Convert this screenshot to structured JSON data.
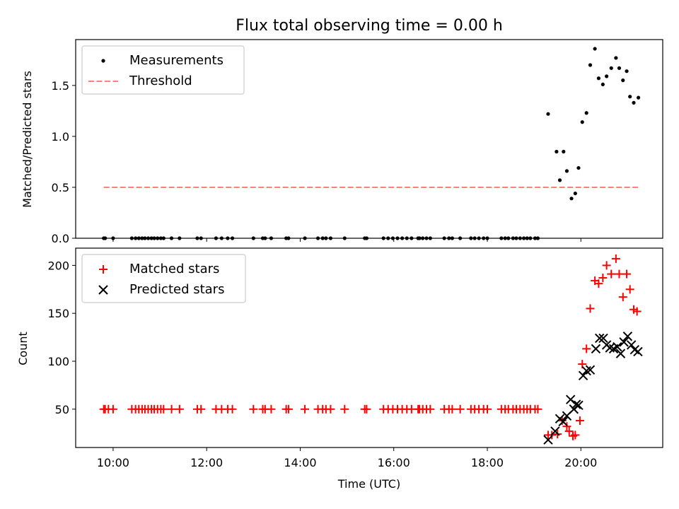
{
  "chart_data": {
    "type": "scatter",
    "title": "Flux total observing time = 0.00 h",
    "xlabel": "Time (UTC)",
    "x_ticks": [
      "10:00",
      "12:00",
      "14:00",
      "16:00",
      "18:00",
      "20:00"
    ],
    "x_unit": "hours UTC",
    "xlim": [
      9.2,
      21.75
    ],
    "panels": [
      {
        "ylabel": "Matched/Predicted stars",
        "ylim": [
          0,
          1.95
        ],
        "y_ticks": [
          "0.0",
          "0.5",
          "1.0",
          "1.5"
        ],
        "legend_placement": "upper-left",
        "series": [
          {
            "name": "Measurements",
            "kind": "dot",
            "color": "#000000",
            "x": [
              9.8,
              9.83,
              10.0,
              10.4,
              10.48,
              10.55,
              10.62,
              10.68,
              10.75,
              10.82,
              10.88,
              10.95,
              11.02,
              11.08,
              11.25,
              11.42,
              11.8,
              11.88,
              12.2,
              12.32,
              12.45,
              12.55,
              13.0,
              13.2,
              13.25,
              13.38,
              13.7,
              13.75,
              14.1,
              14.38,
              14.48,
              14.55,
              14.65,
              14.95,
              15.38,
              15.42,
              15.78,
              15.88,
              15.98,
              16.08,
              16.18,
              16.28,
              16.38,
              16.52,
              16.55,
              16.62,
              16.7,
              16.78,
              17.08,
              17.18,
              17.25,
              17.42,
              17.65,
              17.73,
              17.82,
              17.92,
              18.0,
              18.3,
              18.38,
              18.45,
              18.55,
              18.62,
              18.7,
              18.78,
              18.85,
              18.92,
              19.02,
              19.08,
              19.3,
              19.48,
              19.55,
              19.63,
              19.7,
              19.8,
              19.88,
              19.95,
              20.03,
              20.12,
              20.2,
              20.3,
              20.38,
              20.47,
              20.55,
              20.65,
              20.75,
              20.82,
              20.9,
              20.98,
              21.05,
              21.13,
              21.23
            ],
            "y": [
              0,
              0,
              0,
              0,
              0,
              0,
              0,
              0,
              0,
              0,
              0,
              0,
              0,
              0,
              0,
              0,
              0,
              0,
              0,
              0,
              0,
              0,
              0,
              0,
              0,
              0,
              0,
              0,
              0,
              0,
              0,
              0,
              0,
              0,
              0,
              0,
              0,
              0,
              0,
              0,
              0,
              0,
              0,
              0,
              0,
              0,
              0,
              0,
              0,
              0,
              0,
              0,
              0,
              0,
              0,
              0,
              0,
              0,
              0,
              0,
              0,
              0,
              0,
              0,
              0,
              0,
              0,
              0,
              1.22,
              0.85,
              0.57,
              0.85,
              0.66,
              0.39,
              0.44,
              0.69,
              1.14,
              1.23,
              1.7,
              1.86,
              1.57,
              1.51,
              1.59,
              1.67,
              1.77,
              1.67,
              1.55,
              1.64,
              1.39,
              1.33,
              1.38
            ]
          },
          {
            "name": "Threshold",
            "kind": "dashed-line",
            "color": "#ff7f7f",
            "x": [
              9.8,
              21.23
            ],
            "y": [
              0.5,
              0.5
            ]
          }
        ]
      },
      {
        "ylabel": "Count",
        "ylim": [
          10,
          218
        ],
        "y_ticks": [
          "50",
          "100",
          "150",
          "200"
        ],
        "legend_placement": "upper-left",
        "series": [
          {
            "name": "Matched stars",
            "kind": "plus",
            "color": "#ff0000",
            "x": [
              9.8,
              9.83,
              9.9,
              10.0,
              10.4,
              10.48,
              10.55,
              10.62,
              10.68,
              10.75,
              10.82,
              10.88,
              10.95,
              11.02,
              11.08,
              11.25,
              11.42,
              11.8,
              11.88,
              12.2,
              12.32,
              12.45,
              12.55,
              13.0,
              13.2,
              13.25,
              13.38,
              13.7,
              13.75,
              14.1,
              14.38,
              14.48,
              14.55,
              14.65,
              14.95,
              15.38,
              15.42,
              15.78,
              15.88,
              15.98,
              16.08,
              16.18,
              16.28,
              16.38,
              16.52,
              16.55,
              16.62,
              16.7,
              16.78,
              17.08,
              17.18,
              17.25,
              17.42,
              17.65,
              17.73,
              17.82,
              17.92,
              18.0,
              18.3,
              18.38,
              18.45,
              18.55,
              18.62,
              18.7,
              18.78,
              18.85,
              18.92,
              19.02,
              19.08,
              19.3,
              19.38,
              19.5,
              19.6,
              19.7,
              19.75,
              19.83,
              19.88,
              19.98,
              20.03,
              20.12,
              20.2,
              20.3,
              20.38,
              20.47,
              20.55,
              20.65,
              20.75,
              20.82,
              20.9,
              20.98,
              21.05,
              21.13,
              21.2
            ],
            "y": [
              50,
              50,
              50,
              50,
              50,
              50,
              50,
              50,
              50,
              50,
              50,
              50,
              50,
              50,
              50,
              50,
              50,
              50,
              50,
              50,
              50,
              50,
              50,
              50,
              50,
              50,
              50,
              50,
              50,
              50,
              50,
              50,
              50,
              50,
              50,
              50,
              50,
              50,
              50,
              50,
              50,
              50,
              50,
              50,
              50,
              50,
              50,
              50,
              50,
              50,
              50,
              50,
              50,
              50,
              50,
              50,
              50,
              50,
              50,
              50,
              50,
              50,
              50,
              50,
              50,
              50,
              50,
              50,
              50,
              23,
              23,
              24,
              38,
              32,
              27,
              22,
              23,
              38,
              97,
              113,
              155,
              184,
              181,
              187,
              200,
              191,
              207,
              191,
              167,
              191,
              175,
              154,
              152
            ]
          },
          {
            "name": "Predicted stars",
            "kind": "x",
            "color": "#000000",
            "x": [
              19.3,
              19.45,
              19.55,
              19.62,
              19.7,
              19.78,
              19.85,
              19.9,
              19.95,
              20.05,
              20.12,
              20.2,
              20.32,
              20.4,
              20.48,
              20.55,
              20.62,
              20.7,
              20.78,
              20.85,
              20.92,
              21.0,
              21.08,
              21.15,
              21.22
            ],
            "y": [
              18,
              27,
              40,
              37,
              43,
              60,
              50,
              55,
              54,
              85,
              90,
              91,
              113,
              124,
              124,
              117,
              114,
              113,
              115,
              108,
              120,
              126,
              117,
              112,
              110
            ]
          }
        ]
      }
    ]
  }
}
